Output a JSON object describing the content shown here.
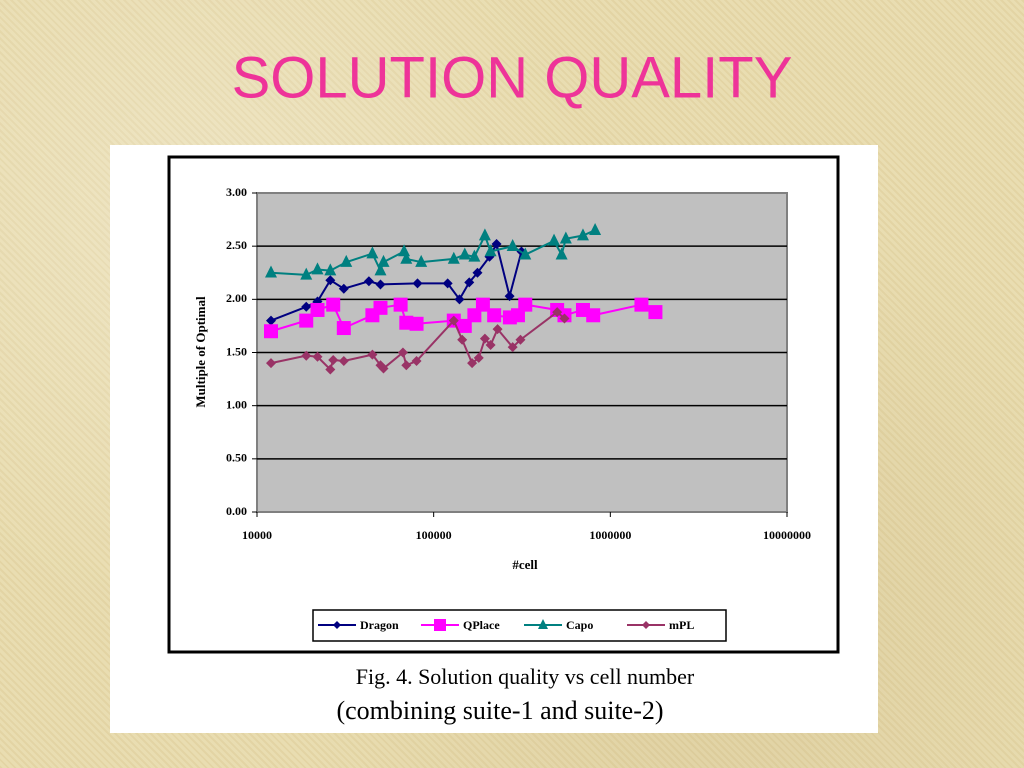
{
  "slide": {
    "title": "SOLUTION QUALITY",
    "caption": [
      "Fig. 4. Solution quality vs cell number",
      "(combining suite-1 and suite-2)"
    ]
  },
  "chart_data": {
    "type": "line",
    "x_label": "#cell",
    "y_label": "Multiple of Optimal",
    "xscale": "log",
    "grid": true,
    "xlim": [
      10000,
      10000000
    ],
    "xticks": [
      10000,
      100000,
      1000000,
      10000000
    ],
    "ylim": [
      0,
      3
    ],
    "yticks": [
      {
        "value": 0,
        "label": "0.00"
      },
      {
        "value": 0.5,
        "label": "0.50"
      },
      {
        "value": 1,
        "label": "1.00"
      },
      {
        "value": 1.5,
        "label": "1.50"
      },
      {
        "value": 2,
        "label": "2.00"
      },
      {
        "value": 2.5,
        "label": "2.50"
      },
      {
        "value": 3,
        "label": "3.00"
      }
    ],
    "series": [
      {
        "name": "Dragon",
        "color": "#000080",
        "marker": "diamond",
        "x": [
          12000,
          19000,
          22000,
          26000,
          31000,
          43000,
          50000,
          81000,
          120000,
          140000,
          159000,
          177000,
          207000,
          227000,
          269000,
          314000
        ],
        "values": [
          1.8,
          1.93,
          1.98,
          2.18,
          2.1,
          2.17,
          2.14,
          2.15,
          2.15,
          2.0,
          2.16,
          2.25,
          2.4,
          2.52,
          2.03,
          2.45
        ]
      },
      {
        "name": "QPlace",
        "color": "#ff00ff",
        "marker": "square",
        "x": [
          12000,
          19000,
          22000,
          27000,
          31000,
          45000,
          50000,
          65000,
          70000,
          80000,
          130000,
          150000,
          170000,
          190000,
          220000,
          270000,
          300000,
          330000,
          500000,
          550000,
          700000,
          800000,
          1500000,
          1800000
        ],
        "values": [
          1.7,
          1.8,
          1.9,
          1.95,
          1.73,
          1.85,
          1.92,
          1.95,
          1.78,
          1.77,
          1.8,
          1.75,
          1.85,
          1.95,
          1.85,
          1.83,
          1.85,
          1.95,
          1.9,
          1.85,
          1.9,
          1.85,
          1.95,
          1.88
        ]
      },
      {
        "name": "Capo",
        "color": "#008080",
        "marker": "triangle",
        "x": [
          12000,
          19000,
          22000,
          26000,
          32000,
          45000,
          50000,
          52000,
          68000,
          70000,
          85000,
          130000,
          150000,
          170000,
          195000,
          210000,
          280000,
          330000,
          480000,
          530000,
          560000,
          700000,
          820000
        ],
        "values": [
          2.25,
          2.23,
          2.28,
          2.27,
          2.35,
          2.43,
          2.27,
          2.35,
          2.45,
          2.38,
          2.35,
          2.38,
          2.42,
          2.4,
          2.6,
          2.45,
          2.5,
          2.42,
          2.55,
          2.42,
          2.57,
          2.6,
          2.65
        ]
      },
      {
        "name": "mPL",
        "color": "#993366",
        "marker": "diamond",
        "x": [
          12000,
          19000,
          22000,
          26000,
          27000,
          31000,
          45000,
          50000,
          52000,
          67000,
          70000,
          80000,
          130000,
          145000,
          165000,
          180000,
          195000,
          210000,
          230000,
          280000,
          310000,
          500000,
          550000
        ],
        "values": [
          1.4,
          1.47,
          1.46,
          1.34,
          1.43,
          1.42,
          1.48,
          1.38,
          1.35,
          1.5,
          1.38,
          1.42,
          1.8,
          1.62,
          1.4,
          1.45,
          1.63,
          1.57,
          1.72,
          1.55,
          1.62,
          1.88,
          1.82
        ]
      }
    ]
  }
}
